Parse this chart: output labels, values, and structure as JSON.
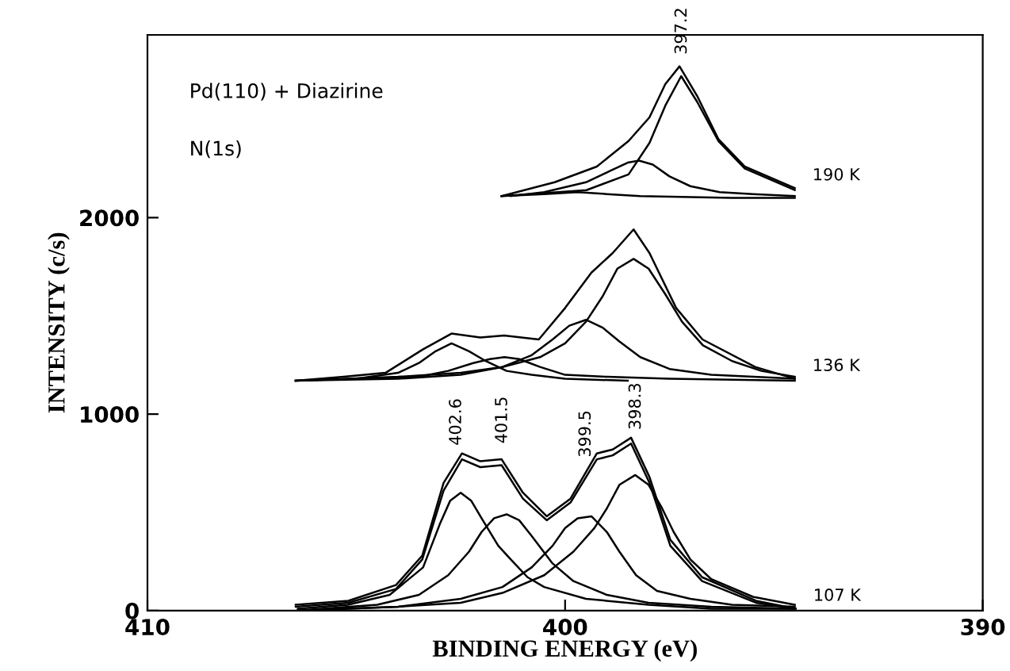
{
  "chart_data": {
    "type": "line",
    "xlabel": "BINDING ENERGY (eV)",
    "ylabel": "INTENSITY (c/s)",
    "xlim": [
      410,
      390
    ],
    "xticks": [
      410,
      400,
      390
    ],
    "ylim": [
      0,
      2930
    ],
    "yticks": [
      0,
      1000,
      2000
    ],
    "grid": false,
    "legend": false,
    "marker": "none",
    "line_style": "solid",
    "series": [
      {
        "color": "#000000",
        "x": [
          406.45,
          405.19,
          404.05,
          403.42,
          402.91,
          402.47,
          402.03,
          401.52,
          401.01,
          400.44,
          399.87,
          399.24,
          398.86,
          398.42,
          397.98,
          397.48,
          396.72,
          395.43,
          394.48
        ],
        "values": [
          30,
          50,
          130,
          280,
          650,
          800,
          760,
          770,
          600,
          480,
          570,
          800,
          820,
          880,
          680,
          360,
          170,
          50,
          10
        ]
      },
      {
        "color": "#000000",
        "x": [
          406.45,
          405.19,
          404.05,
          403.42,
          402.91,
          402.47,
          402.03,
          401.52,
          401.01,
          400.44,
          399.87,
          399.24,
          398.86,
          398.42,
          397.98,
          397.48,
          396.72,
          395.43,
          394.48
        ],
        "values": [
          20,
          40,
          110,
          260,
          610,
          770,
          730,
          740,
          570,
          460,
          550,
          770,
          790,
          850,
          650,
          330,
          150,
          40,
          10
        ]
      },
      {
        "color": "#000000",
        "x": [
          406.4,
          405.2,
          404.2,
          403.4,
          403.0,
          402.75,
          402.5,
          402.25,
          402.0,
          401.6,
          401.3,
          400.9,
          400.5,
          399.5,
          398,
          396.5,
          394.5
        ],
        "values": [
          10,
          30,
          80,
          220,
          440,
          560,
          600,
          560,
          470,
          330,
          260,
          170,
          120,
          60,
          30,
          10,
          10
        ]
      },
      {
        "color": "#000000",
        "x": [
          406.4,
          404.5,
          403.5,
          402.8,
          402.3,
          402.0,
          401.7,
          401.4,
          401.1,
          400.8,
          400.3,
          399.8,
          399,
          398,
          396.5,
          394.5
        ],
        "values": [
          0,
          30,
          80,
          180,
          300,
          400,
          470,
          490,
          460,
          380,
          240,
          150,
          80,
          40,
          20,
          10
        ]
      },
      {
        "color": "#000000",
        "x": [
          406.4,
          404,
          402.5,
          401.5,
          400.8,
          400.3,
          400.0,
          399.7,
          399.37,
          399.0,
          398.7,
          398.3,
          397.8,
          397,
          396,
          394.5
        ],
        "values": [
          0,
          20,
          60,
          120,
          220,
          330,
          420,
          470,
          480,
          400,
          300,
          180,
          100,
          60,
          30,
          20
        ]
      },
      {
        "color": "#000000",
        "x": [
          406.4,
          404,
          402.5,
          401.5,
          400.5,
          399.8,
          399.3,
          399.0,
          398.7,
          398.32,
          398.0,
          397.7,
          397.4,
          397.0,
          396.5,
          395.5,
          394.5
        ],
        "values": [
          0,
          20,
          40,
          90,
          180,
          300,
          420,
          520,
          640,
          690,
          640,
          530,
          400,
          260,
          160,
          70,
          30
        ]
      },
      {
        "color": "#000000",
        "x": [
          406.45,
          405.3,
          404.3,
          403.4,
          402.72,
          402.03,
          401.46,
          400.63,
          400.0,
          399.37,
          398.86,
          398.36,
          397.98,
          397.34,
          396.71,
          395.45,
          394.5
        ],
        "values": [
          1170,
          1190,
          1210,
          1330,
          1410,
          1390,
          1400,
          1380,
          1540,
          1720,
          1820,
          1940,
          1820,
          1540,
          1380,
          1240,
          1180
        ]
      },
      {
        "color": "#000000",
        "x": [
          406.45,
          405,
          404,
          403.5,
          403.1,
          402.72,
          402.3,
          401.9,
          401.4,
          400.8,
          400,
          398.5
        ],
        "values": [
          1170,
          1180,
          1210,
          1260,
          1320,
          1360,
          1320,
          1270,
          1220,
          1200,
          1180,
          1170
        ]
      },
      {
        "color": "#000000",
        "x": [
          404.5,
          403.5,
          402.8,
          402.2,
          401.8,
          401.45,
          401.1,
          400.6,
          400,
          399,
          397.5,
          394.5
        ],
        "values": [
          1180,
          1190,
          1220,
          1260,
          1280,
          1290,
          1280,
          1240,
          1200,
          1190,
          1180,
          1170
        ]
      },
      {
        "color": "#000000",
        "x": [
          406.45,
          404,
          402.5,
          401.5,
          400.8,
          400.3,
          399.9,
          399.5,
          399.1,
          398.7,
          398.2,
          397.5,
          396.5,
          394.5
        ],
        "values": [
          1170,
          1180,
          1200,
          1240,
          1300,
          1380,
          1450,
          1480,
          1440,
          1370,
          1290,
          1230,
          1200,
          1180
        ]
      },
      {
        "color": "#000000",
        "x": [
          406.45,
          404,
          402.5,
          401.5,
          400.6,
          400,
          399.5,
          399.1,
          398.75,
          398.36,
          398.0,
          397.6,
          397.2,
          396.7,
          396,
          395.3,
          394.5
        ],
        "values": [
          1170,
          1190,
          1210,
          1240,
          1290,
          1360,
          1470,
          1600,
          1740,
          1790,
          1740,
          1610,
          1470,
          1350,
          1270,
          1220,
          1190
        ]
      },
      {
        "color": "#000000",
        "x": [
          401.52,
          400.25,
          399.24,
          398.48,
          397.98,
          397.6,
          397.26,
          396.84,
          396.33,
          395.7,
          394.5
        ],
        "values": [
          2110,
          2180,
          2260,
          2390,
          2510,
          2680,
          2770,
          2620,
          2400,
          2260,
          2150
        ]
      },
      {
        "color": "#000000",
        "x": [
          401.52,
          399.49,
          398.48,
          397.98,
          397.6,
          397.22,
          396.84,
          396.33,
          395.7,
          394.5
        ],
        "values": [
          2110,
          2140,
          2220,
          2380,
          2570,
          2720,
          2590,
          2390,
          2250,
          2140
        ]
      },
      {
        "color": "#000000",
        "x": [
          401.3,
          400.5,
          399.5,
          398.9,
          398.5,
          398.23,
          397.9,
          397.5,
          397.0,
          396.3,
          395.5,
          394.5
        ],
        "values": [
          2110,
          2130,
          2180,
          2240,
          2280,
          2290,
          2270,
          2210,
          2160,
          2130,
          2120,
          2110
        ]
      },
      {
        "color": "#000000",
        "x": [
          401.52,
          400.5,
          399.7,
          399.0,
          398.2,
          396,
          394.5
        ],
        "values": [
          2110,
          2120,
          2130,
          2120,
          2110,
          2100,
          2100
        ]
      }
    ],
    "annotations": [
      "Pd(110) + Diazirine",
      "N(1s)",
      {
        "text": "402.6",
        "x": 402.6,
        "y": 750
      },
      {
        "text": "401.5",
        "x": 401.5,
        "y": 760
      },
      {
        "text": "399.5",
        "x": 399.5,
        "y": 690
      },
      {
        "text": "398.3",
        "x": 398.3,
        "y": 830
      },
      {
        "text": "397.2",
        "x": 397.2,
        "y": 2740
      },
      {
        "text": "107 K",
        "x": 394.48,
        "y": 10
      },
      {
        "text": "136 K",
        "x": 394.5,
        "y": 1180
      },
      {
        "text": "190 K",
        "x": 394.5,
        "y": 2150
      }
    ]
  }
}
